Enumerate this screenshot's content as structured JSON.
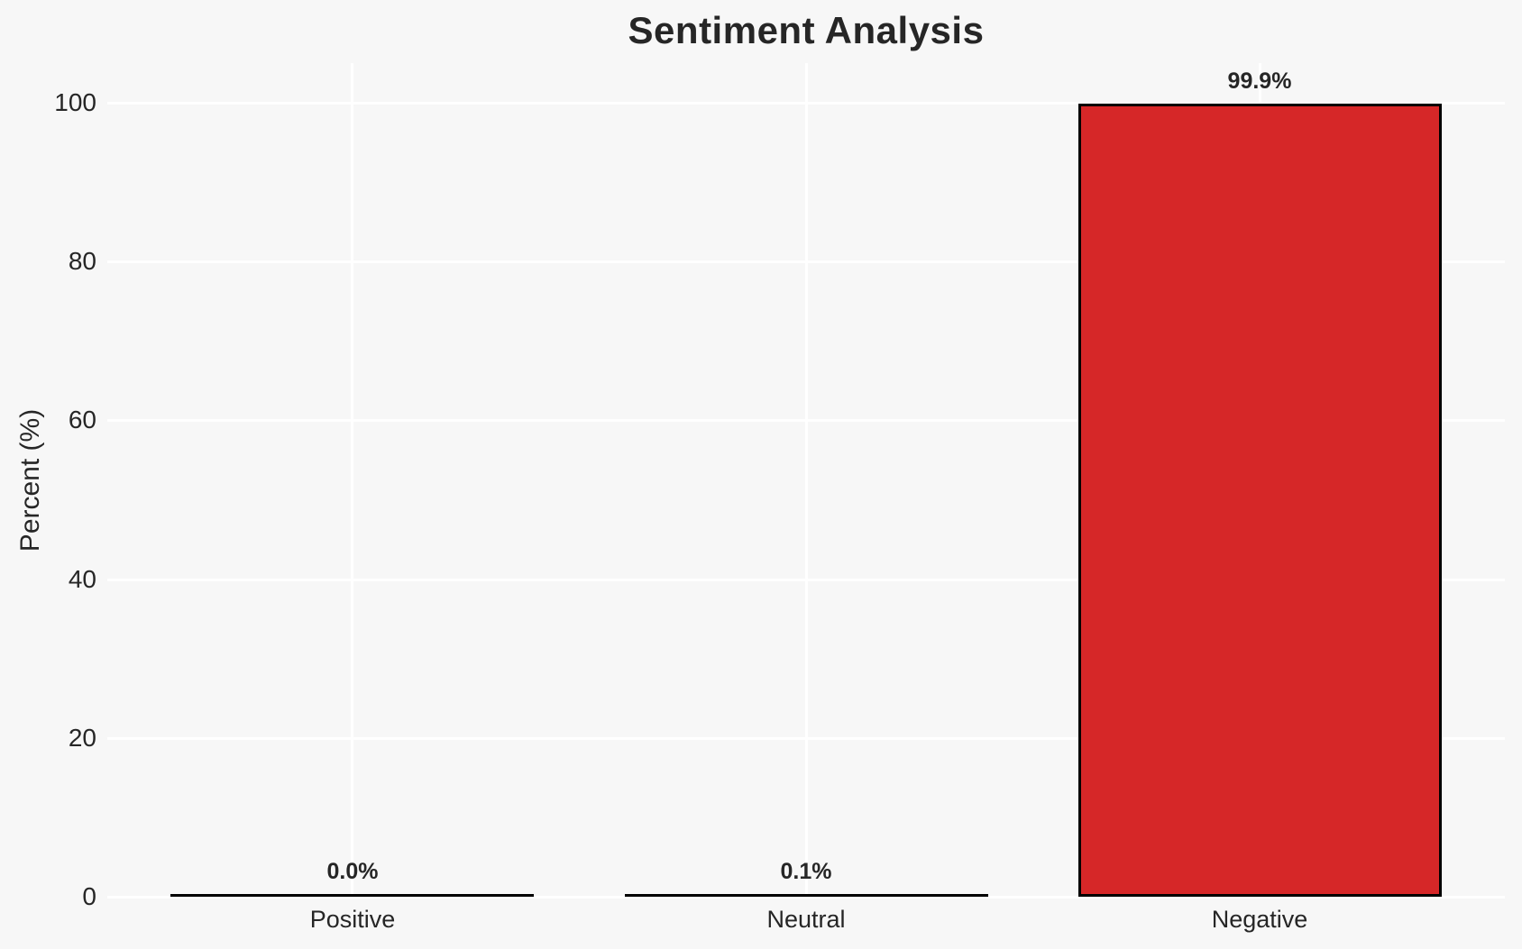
{
  "chart_data": {
    "type": "bar",
    "title": "Sentiment Analysis",
    "xlabel": "",
    "ylabel": "Percent (%)",
    "categories": [
      "Positive",
      "Neutral",
      "Negative"
    ],
    "values": [
      0.0,
      0.1,
      99.9
    ],
    "value_labels": [
      "0.0%",
      "0.1%",
      "99.9%"
    ],
    "yticks": [
      "0",
      "20",
      "40",
      "60",
      "80",
      "100"
    ],
    "ytick_values": [
      0,
      20,
      40,
      60,
      80,
      100
    ],
    "ylim": [
      0,
      105
    ],
    "grid": true,
    "legend": false,
    "colors": {
      "bar_fill": "#d62728",
      "bar_edge": "#000000",
      "background": "#f7f7f7",
      "gridline": "#ffffff",
      "text": "#262626"
    }
  }
}
